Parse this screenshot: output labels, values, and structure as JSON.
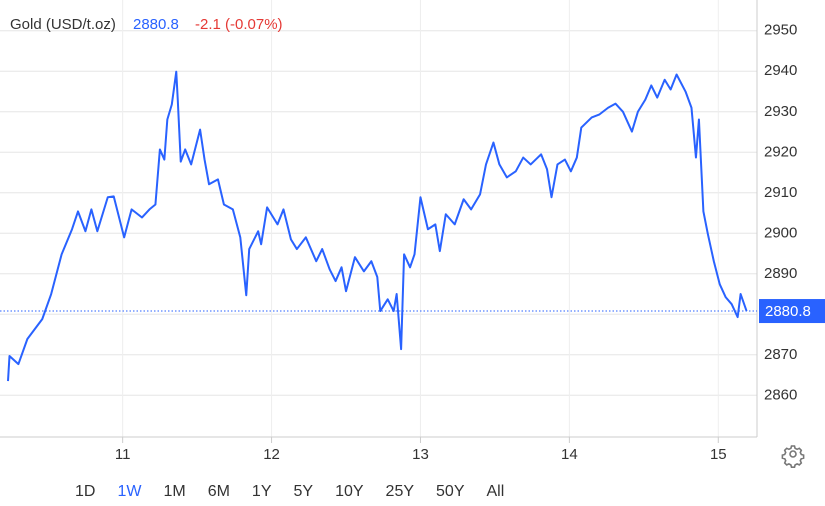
{
  "chart_data": {
    "type": "line",
    "title": "Gold (USD/t.oz)",
    "last_price": 2880.8,
    "change": "-2.1 (-0.07%)",
    "x": [
      10.23,
      10.24,
      10.3,
      10.36,
      10.46,
      10.52,
      10.59,
      10.66,
      10.7,
      10.75,
      10.79,
      10.83,
      10.9,
      10.94,
      11.01,
      11.06,
      11.13,
      11.18,
      11.22,
      11.25,
      11.28,
      11.3,
      11.33,
      11.36,
      11.37,
      11.39,
      11.42,
      11.46,
      11.52,
      11.55,
      11.58,
      11.64,
      11.68,
      11.74,
      11.79,
      11.83,
      11.85,
      11.91,
      11.93,
      11.97,
      12.04,
      12.08,
      12.13,
      12.17,
      12.23,
      12.3,
      12.34,
      12.39,
      12.43,
      12.47,
      12.5,
      12.56,
      12.62,
      12.67,
      12.71,
      12.73,
      12.78,
      12.82,
      12.84,
      12.87,
      12.89,
      12.93,
      12.96,
      13.0,
      13.05,
      13.1,
      13.13,
      13.17,
      13.23,
      13.29,
      13.34,
      13.4,
      13.44,
      13.49,
      13.53,
      13.58,
      13.64,
      13.69,
      13.74,
      13.81,
      13.85,
      13.88,
      13.92,
      13.97,
      14.01,
      14.05,
      14.08,
      14.15,
      14.2,
      14.26,
      14.31,
      14.36,
      14.42,
      14.46,
      14.51,
      14.55,
      14.59,
      14.64,
      14.68,
      14.72,
      14.78,
      14.82,
      14.85,
      14.87,
      14.9,
      14.93,
      14.97,
      15.01,
      15.05,
      15.09,
      15.13,
      15.15,
      15.19
    ],
    "series": [
      {
        "name": "Gold",
        "color": "#2962ff",
        "values": [
          2863.5,
          2869.7,
          2867.7,
          2873.9,
          2878.8,
          2885.0,
          2894.8,
          2901.0,
          2905.4,
          2900.5,
          2905.9,
          2900.5,
          2908.9,
          2909.1,
          2899.0,
          2905.9,
          2903.9,
          2905.9,
          2907.1,
          2920.7,
          2918.2,
          2928.1,
          2931.8,
          2939.9,
          2933.0,
          2917.7,
          2920.7,
          2917.0,
          2925.6,
          2918.2,
          2912.1,
          2913.3,
          2907.1,
          2905.9,
          2899.0,
          2884.7,
          2896.1,
          2900.5,
          2897.3,
          2906.4,
          2902.2,
          2905.9,
          2898.5,
          2896.1,
          2899.0,
          2893.1,
          2896.1,
          2891.1,
          2888.2,
          2891.6,
          2885.7,
          2894.1,
          2890.6,
          2893.1,
          2889.2,
          2880.8,
          2883.7,
          2880.8,
          2885.0,
          2871.4,
          2894.8,
          2891.6,
          2894.8,
          2908.9,
          2901.0,
          2902.2,
          2895.6,
          2904.7,
          2902.2,
          2908.4,
          2905.9,
          2909.6,
          2917.0,
          2922.4,
          2917.0,
          2913.8,
          2915.3,
          2918.7,
          2917.0,
          2919.5,
          2915.8,
          2908.9,
          2917.0,
          2918.2,
          2915.3,
          2918.7,
          2926.1,
          2928.6,
          2929.3,
          2931.0,
          2932.0,
          2930.0,
          2925.1,
          2930.0,
          2933.0,
          2936.5,
          2933.5,
          2937.9,
          2935.5,
          2939.2,
          2935.0,
          2931.0,
          2918.7,
          2928.1,
          2905.4,
          2899.8,
          2893.1,
          2887.4,
          2884.2,
          2882.5,
          2879.3,
          2885.0,
          2880.8
        ]
      }
    ],
    "xlim": [
      10.23,
      15.26
    ],
    "xticks": [
      11,
      12,
      13,
      14,
      15
    ],
    "ylim": [
      2849.7,
      2957.6
    ],
    "yticks": [
      2860,
      2870,
      2880,
      2890,
      2900,
      2910,
      2920,
      2930,
      2940,
      2950
    ],
    "grid": true,
    "ranges": [
      "1D",
      "1W",
      "1M",
      "6M",
      "1Y",
      "5Y",
      "10Y",
      "25Y",
      "50Y",
      "All"
    ],
    "active_range": 1
  }
}
